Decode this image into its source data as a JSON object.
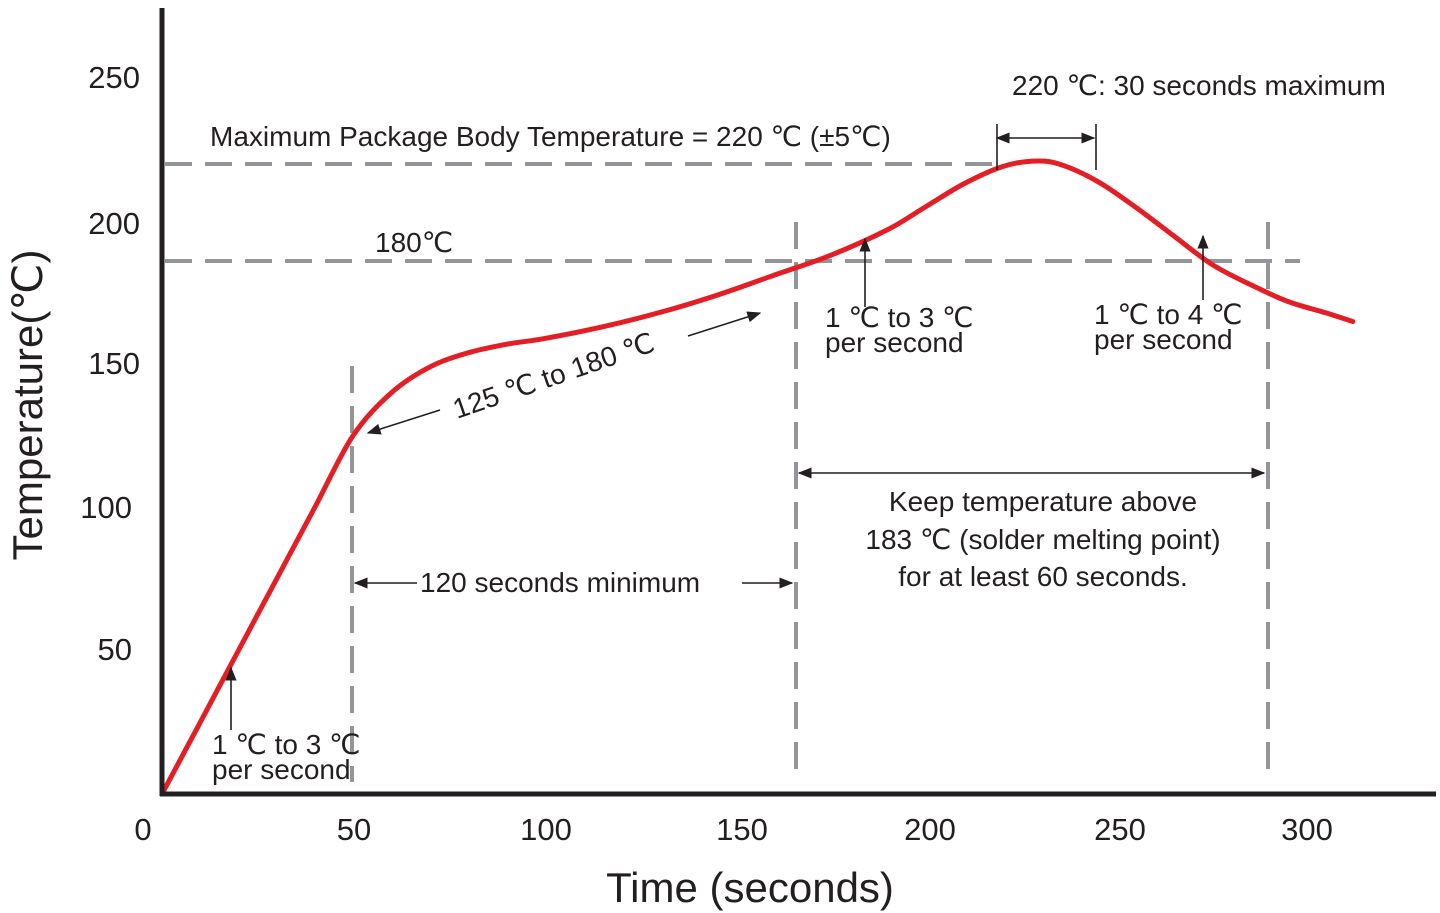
{
  "chart_data": {
    "type": "line",
    "xlabel": "Time (seconds)",
    "ylabel": "Temperature(℃)",
    "x_ticks": [
      "0",
      "50",
      "100",
      "150",
      "200",
      "250",
      "300"
    ],
    "y_ticks": [
      "50",
      "100",
      "150",
      "200",
      "250"
    ],
    "xlim": [
      0,
      330
    ],
    "ylim": [
      0,
      270
    ],
    "grid": false,
    "series": [
      {
        "color": "#e31e25",
        "x": [
          0,
          10,
          20,
          30,
          40,
          50,
          60,
          70,
          80,
          90,
          100,
          115,
          130,
          145,
          160,
          175,
          190,
          200,
          210,
          220,
          228,
          235,
          245,
          255,
          265,
          275,
          285,
          295,
          305,
          312
        ],
        "y": [
          0,
          25,
          50,
          75,
          100,
          125,
          140,
          149,
          154,
          157,
          159,
          163,
          168,
          174,
          181,
          188,
          197,
          205,
          213,
          219,
          221,
          220,
          214,
          205,
          195,
          185,
          178,
          172,
          168,
          165
        ]
      }
    ],
    "reference_lines": {
      "horizontal": [
        220,
        185
      ],
      "vertical": [
        50,
        165,
        288
      ]
    },
    "annotations": {
      "max_package": "Maximum Package Body Temperature = 220 ℃ (±5℃)",
      "max_time": "220 ℃: 30 seconds maximum",
      "temp_180": "180℃",
      "soak_range": "125 ℃ to 180 ℃",
      "ramp1": [
        "1 ℃ to 3 ℃",
        "per second"
      ],
      "ramp2": [
        "1 ℃ to 3 ℃",
        "per second"
      ],
      "ramp3": [
        "1 ℃ to 4 ℃",
        "per second"
      ],
      "soak_time": "120 seconds minimum",
      "reflow_note": [
        "Keep temperature above",
        "183 ℃ (solder melting point)",
        "for at least 60 seconds."
      ]
    }
  }
}
